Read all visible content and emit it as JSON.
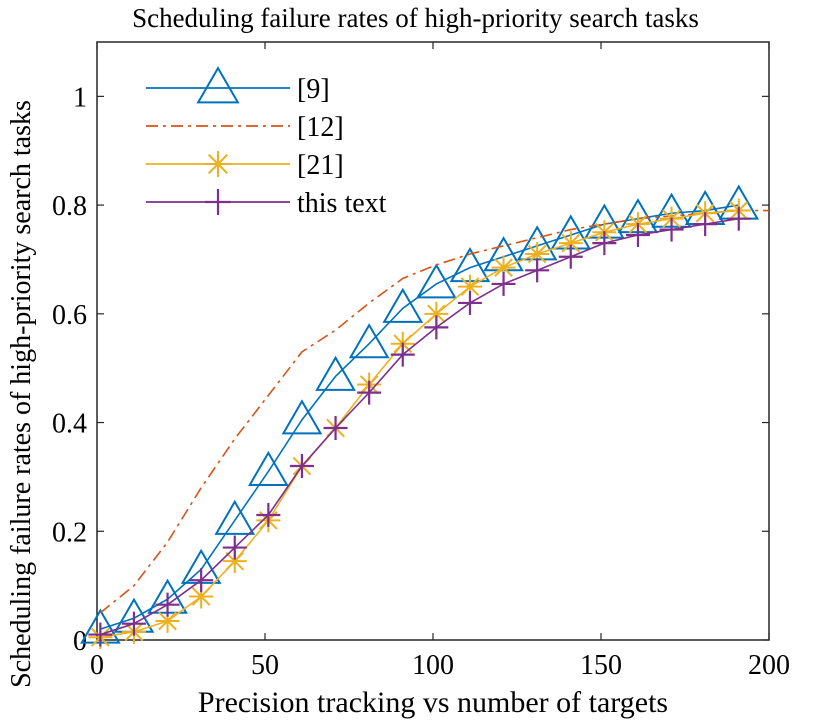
{
  "chart_data": {
    "type": "line",
    "title": "Scheduling failure rates of high-priority search tasks",
    "xlabel": "Precision tracking vs number of targets",
    "ylabel": "Scheduling failure rates of high-priority search tasks",
    "xlim": [
      0,
      200
    ],
    "ylim": [
      0,
      1.1
    ],
    "xticks": [
      0,
      50,
      100,
      150,
      200
    ],
    "yticks": [
      0,
      0.2,
      0.4,
      0.6,
      0.8,
      1
    ],
    "ytick_labels": [
      "0",
      "0.2",
      "0.4",
      "0.6",
      "0.8",
      "1"
    ],
    "legend_location": "top-left",
    "series": [
      {
        "name": "[9]",
        "color": "#0072BD",
        "style": "solid",
        "marker": "triangle",
        "x": [
          1,
          11,
          21,
          31,
          41,
          51,
          61,
          71,
          81,
          91,
          101,
          111,
          121,
          131,
          141,
          151,
          161,
          171,
          181,
          191
        ],
        "y": [
          0.02,
          0.04,
          0.075,
          0.13,
          0.22,
          0.31,
          0.405,
          0.485,
          0.545,
          0.61,
          0.655,
          0.685,
          0.705,
          0.725,
          0.745,
          0.765,
          0.775,
          0.785,
          0.79,
          0.8
        ]
      },
      {
        "name": "[12]",
        "color": "#D95319",
        "style": "dashdot",
        "marker": "none",
        "x": [
          1,
          11,
          21,
          31,
          41,
          51,
          61,
          71,
          81,
          91,
          101,
          111,
          121,
          131,
          141,
          151,
          161,
          171,
          181,
          191,
          200
        ],
        "y": [
          0.05,
          0.1,
          0.18,
          0.28,
          0.37,
          0.45,
          0.53,
          0.57,
          0.62,
          0.665,
          0.69,
          0.71,
          0.725,
          0.74,
          0.755,
          0.765,
          0.775,
          0.78,
          0.785,
          0.79,
          0.79
        ]
      },
      {
        "name": "[21]",
        "color": "#EDB120",
        "style": "solid",
        "marker": "asterisk",
        "x": [
          1,
          11,
          21,
          31,
          41,
          51,
          61,
          71,
          81,
          91,
          101,
          111,
          121,
          131,
          141,
          151,
          161,
          171,
          181,
          191
        ],
        "y": [
          0.005,
          0.015,
          0.035,
          0.08,
          0.145,
          0.22,
          0.32,
          0.39,
          0.47,
          0.545,
          0.6,
          0.65,
          0.685,
          0.71,
          0.73,
          0.75,
          0.765,
          0.775,
          0.785,
          0.79
        ]
      },
      {
        "name": "this text",
        "color": "#7E2F8E",
        "style": "solid",
        "marker": "plus",
        "x": [
          1,
          11,
          21,
          31,
          41,
          51,
          61,
          71,
          81,
          91,
          101,
          111,
          121,
          131,
          141,
          151,
          161,
          171,
          181,
          191
        ],
        "y": [
          0.01,
          0.03,
          0.065,
          0.11,
          0.17,
          0.23,
          0.32,
          0.39,
          0.455,
          0.525,
          0.575,
          0.62,
          0.655,
          0.68,
          0.705,
          0.73,
          0.745,
          0.755,
          0.765,
          0.775
        ]
      }
    ]
  }
}
